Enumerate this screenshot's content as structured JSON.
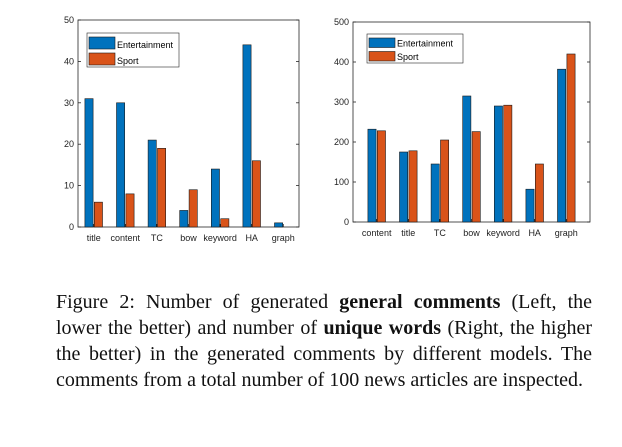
{
  "chart_data": [
    {
      "type": "bar",
      "categories": [
        "title",
        "content",
        "TC",
        "bow",
        "keyword",
        "HA",
        "graph"
      ],
      "series": [
        {
          "name": "Entertainment",
          "values": [
            31,
            30,
            21,
            4,
            14,
            44,
            1
          ]
        },
        {
          "name": "Sport",
          "values": [
            6,
            8,
            19,
            9,
            2,
            16,
            0
          ]
        }
      ],
      "ylim": [
        0,
        50
      ],
      "yticks": [
        0,
        10,
        20,
        30,
        40,
        50
      ],
      "legend_position": "top-left",
      "title": "",
      "xlabel": "",
      "ylabel": ""
    },
    {
      "type": "bar",
      "categories": [
        "content",
        "title",
        "TC",
        "bow",
        "keyword",
        "HA",
        "graph"
      ],
      "series": [
        {
          "name": "Entertainment",
          "values": [
            232,
            175,
            145,
            315,
            290,
            82,
            382
          ]
        },
        {
          "name": "Sport",
          "values": [
            228,
            178,
            205,
            226,
            292,
            145,
            420
          ]
        }
      ],
      "ylim": [
        0,
        500
      ],
      "yticks": [
        0,
        100,
        200,
        300,
        400,
        500
      ],
      "legend_position": "top-left",
      "title": "",
      "xlabel": "",
      "ylabel": ""
    }
  ],
  "colors": {
    "Entertainment": "#0072BD",
    "Sport": "#D95319"
  },
  "caption": {
    "part1": "Figure 2:  Number of generated ",
    "bold1": "general comments",
    "part2": " (Left, the lower the better) and number of ",
    "bold2": "unique words",
    "part3": " (Right, the higher the better) in the generated comments by different models. The comments from a total number of 100 news articles are inspected."
  }
}
